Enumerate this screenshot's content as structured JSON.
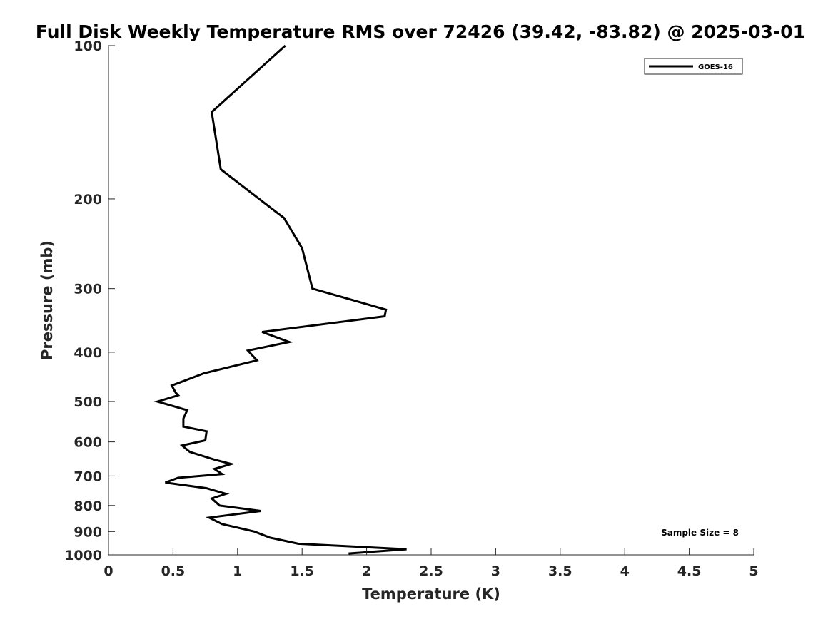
{
  "chart_data": {
    "type": "line",
    "title": "Full Disk Weekly Temperature RMS over 72426 (39.42, -83.82) @ 2025-03-01",
    "xlabel": "Temperature (K)",
    "ylabel": "Pressure (mb)",
    "xlim": [
      0,
      5
    ],
    "ylim": [
      100,
      1000
    ],
    "yscale": "log",
    "yreversed": true,
    "x_ticks": [
      "0",
      "0.5",
      "1",
      "1.5",
      "2",
      "2.5",
      "3",
      "3.5",
      "4",
      "4.5",
      "5"
    ],
    "y_ticks": [
      "100",
      "200",
      "300",
      "400",
      "500",
      "600",
      "700",
      "800",
      "900",
      "1000"
    ],
    "grid": false,
    "legend_position": "top-right",
    "annotation": "Sample Size = 8",
    "series": [
      {
        "name": "GOES-16",
        "color": "#000000",
        "points": [
          [
            1.37,
            100
          ],
          [
            0.8,
            135
          ],
          [
            0.87,
            175
          ],
          [
            1.36,
            218
          ],
          [
            1.5,
            250
          ],
          [
            1.58,
            300
          ],
          [
            2.15,
            330
          ],
          [
            2.14,
            340
          ],
          [
            1.19,
            365
          ],
          [
            1.4,
            382
          ],
          [
            1.08,
            397
          ],
          [
            1.15,
            415
          ],
          [
            0.74,
            440
          ],
          [
            0.49,
            465
          ],
          [
            0.52,
            480
          ],
          [
            0.54,
            486
          ],
          [
            0.38,
            500
          ],
          [
            0.61,
            520
          ],
          [
            0.58,
            540
          ],
          [
            0.58,
            560
          ],
          [
            0.76,
            572
          ],
          [
            0.75,
            596
          ],
          [
            0.57,
            610
          ],
          [
            0.63,
            628
          ],
          [
            0.82,
            650
          ],
          [
            0.95,
            663
          ],
          [
            0.82,
            678
          ],
          [
            0.88,
            694
          ],
          [
            0.54,
            706
          ],
          [
            0.44,
            721
          ],
          [
            0.76,
            740
          ],
          [
            0.91,
            759
          ],
          [
            0.8,
            775
          ],
          [
            0.86,
            800
          ],
          [
            1.18,
            820
          ],
          [
            0.78,
            845
          ],
          [
            0.88,
            870
          ],
          [
            1.13,
            900
          ],
          [
            1.25,
            925
          ],
          [
            1.47,
            951
          ],
          [
            2.31,
            975
          ],
          [
            1.86,
            994
          ]
        ]
      }
    ]
  }
}
